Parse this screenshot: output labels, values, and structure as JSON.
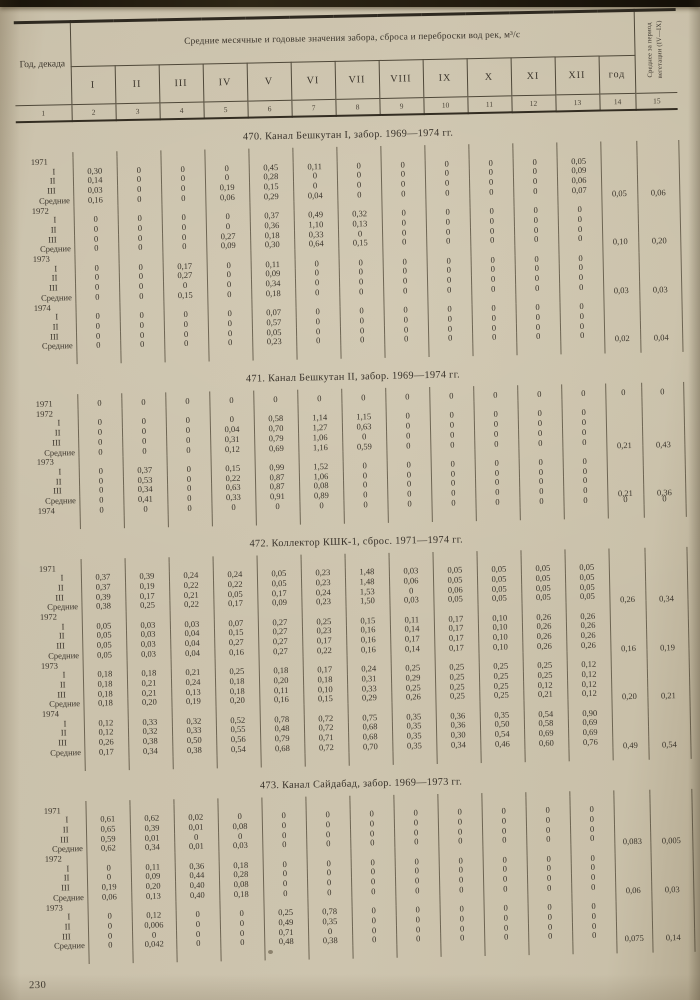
{
  "page": {
    "number": "230"
  },
  "header": {
    "col1": "Год, декада",
    "span_title": "Средние месячные и годовые значения забора, сброса и переброски вод рек, м³/с",
    "months": [
      "I",
      "II",
      "III",
      "IV",
      "V",
      "VI",
      "VII",
      "VIII",
      "IX",
      "X",
      "XI",
      "XII"
    ],
    "year_col": "год",
    "veg_col": "Среднее за период вегетации (IV—IX)",
    "col_numbers": [
      "1",
      "2",
      "3",
      "4",
      "5",
      "6",
      "7",
      "8",
      "9",
      "10",
      "11",
      "12",
      "13",
      "14",
      "15"
    ]
  },
  "sections": [
    {
      "title": "470. Канал Бешкутан I, забор. 1969—1974 гг.",
      "rows": [
        [
          "1971",
          "",
          "",
          "",
          "",
          "",
          "",
          "",
          "",
          "",
          "",
          "",
          "",
          "",
          ""
        ],
        [
          "I",
          "0,30",
          "0",
          "0",
          "0",
          "0,45",
          "0,11",
          "0",
          "0",
          "0",
          "0",
          "0",
          "0,05",
          "",
          ""
        ],
        [
          "II",
          "0,14",
          "0",
          "0",
          "0",
          "0,28",
          "0",
          "0",
          "0",
          "0",
          "0",
          "0",
          "0,09",
          "",
          ""
        ],
        [
          "III",
          "0,03",
          "0",
          "0",
          "0,19",
          "0,15",
          "0",
          "0",
          "0",
          "0",
          "0",
          "0",
          "0,06",
          "",
          ""
        ],
        [
          "Средние",
          "0,16",
          "0",
          "0",
          "0,06",
          "0,29",
          "0,04",
          "0",
          "0",
          "0",
          "0",
          "0",
          "0,07",
          "0,05",
          "0,06"
        ],
        [
          "1972",
          "",
          "",
          "",
          "",
          "",
          "",
          "",
          "",
          "",
          "",
          "",
          "",
          "",
          ""
        ],
        [
          "I",
          "0",
          "0",
          "0",
          "0",
          "0,37",
          "0,49",
          "0,32",
          "0",
          "0",
          "0",
          "0",
          "0",
          "",
          ""
        ],
        [
          "II",
          "0",
          "0",
          "0",
          "0",
          "0,36",
          "1,10",
          "0,13",
          "0",
          "0",
          "0",
          "0",
          "0",
          "",
          ""
        ],
        [
          "III",
          "0",
          "0",
          "0",
          "0,27",
          "0,18",
          "0,33",
          "0",
          "0",
          "0",
          "0",
          "0",
          "0",
          "",
          ""
        ],
        [
          "Средние",
          "0",
          "0",
          "0",
          "0,09",
          "0,30",
          "0,64",
          "0,15",
          "0",
          "0",
          "0",
          "0",
          "0",
          "0,10",
          "0,20"
        ],
        [
          "1973",
          "",
          "",
          "",
          "",
          "",
          "",
          "",
          "",
          "",
          "",
          "",
          "",
          "",
          ""
        ],
        [
          "I",
          "0",
          "0",
          "0,17",
          "0",
          "0,11",
          "0",
          "0",
          "0",
          "0",
          "0",
          "0",
          "0",
          "",
          ""
        ],
        [
          "II",
          "0",
          "0",
          "0,27",
          "0",
          "0,09",
          "0",
          "0",
          "0",
          "0",
          "0",
          "0",
          "0",
          "",
          ""
        ],
        [
          "III",
          "0",
          "0",
          "0",
          "0",
          "0,34",
          "0",
          "0",
          "0",
          "0",
          "0",
          "0",
          "0",
          "",
          ""
        ],
        [
          "Средние",
          "0",
          "0",
          "0,15",
          "0",
          "0,18",
          "0",
          "0",
          "0",
          "0",
          "0",
          "0",
          "0",
          "0,03",
          "0,03"
        ],
        [
          "1974",
          "",
          "",
          "",
          "",
          "",
          "",
          "",
          "",
          "",
          "",
          "",
          "",
          "",
          ""
        ],
        [
          "I",
          "0",
          "0",
          "0",
          "0",
          "0,07",
          "0",
          "0",
          "0",
          "0",
          "0",
          "0",
          "0",
          "",
          ""
        ],
        [
          "II",
          "0",
          "0",
          "0",
          "0",
          "0,57",
          "0",
          "0",
          "0",
          "0",
          "0",
          "0",
          "0",
          "",
          ""
        ],
        [
          "III",
          "0",
          "0",
          "0",
          "0",
          "0,05",
          "0",
          "0",
          "0",
          "0",
          "0",
          "0",
          "0",
          "",
          ""
        ],
        [
          "Средние",
          "0",
          "0",
          "0",
          "0",
          "0,23",
          "0",
          "0",
          "0",
          "0",
          "0",
          "0",
          "0",
          "0,02",
          "0,04"
        ]
      ]
    },
    {
      "title": "471. Канал Бешкутан II, забор. 1969—1974 гг.",
      "rows": [
        [
          "1971",
          "0",
          "0",
          "0",
          "0",
          "0",
          "0",
          "0",
          "0",
          "0",
          "0",
          "0",
          "0",
          "0",
          "0"
        ],
        [
          "1972",
          "",
          "",
          "",
          "",
          "",
          "",
          "",
          "",
          "",
          "",
          "",
          "",
          "",
          ""
        ],
        [
          "I",
          "0",
          "0",
          "0",
          "0",
          "0,58",
          "1,14",
          "1,15",
          "0",
          "0",
          "0",
          "0",
          "0",
          "",
          ""
        ],
        [
          "II",
          "0",
          "0",
          "0",
          "0,04",
          "0,70",
          "1,27",
          "0,63",
          "0",
          "0",
          "0",
          "0",
          "0",
          "",
          ""
        ],
        [
          "III",
          "0",
          "0",
          "0",
          "0,31",
          "0,79",
          "1,06",
          "0",
          "0",
          "0",
          "0",
          "0",
          "0",
          "",
          ""
        ],
        [
          "Средние",
          "0",
          "0",
          "0",
          "0,12",
          "0,69",
          "1,16",
          "0,59",
          "0",
          "0",
          "0",
          "0",
          "0",
          "0,21",
          "0,43"
        ],
        [
          "1973",
          "",
          "",
          "",
          "",
          "",
          "",
          "",
          "",
          "",
          "",
          "",
          "",
          "",
          ""
        ],
        [
          "I",
          "0",
          "0,37",
          "0",
          "0,15",
          "0,99",
          "1,52",
          "0",
          "0",
          "0",
          "0",
          "0",
          "0",
          "",
          ""
        ],
        [
          "II",
          "0",
          "0,53",
          "0",
          "0,22",
          "0,87",
          "1,06",
          "0",
          "0",
          "0",
          "0",
          "0",
          "0",
          "",
          ""
        ],
        [
          "III",
          "0",
          "0,34",
          "0",
          "0,63",
          "0,87",
          "0,08",
          "0",
          "0",
          "0",
          "0",
          "0",
          "0",
          "",
          ""
        ],
        [
          "Средние",
          "0",
          "0,41",
          "0",
          "0,33",
          "0,91",
          "0,89",
          "0",
          "0",
          "0",
          "0",
          "0",
          "0",
          "0,21",
          "0,36"
        ],
        [
          "1974",
          "0",
          "0",
          "0",
          "0",
          "0",
          "0",
          "0",
          "0",
          "0",
          "0",
          "0",
          "0",
          "0",
          "0"
        ]
      ]
    },
    {
      "title": "472. Коллектор КШК-1, сброс. 1971—1974 гг.",
      "rows": [
        [
          "1971",
          "",
          "",
          "",
          "",
          "",
          "",
          "",
          "",
          "",
          "",
          "",
          "",
          "",
          ""
        ],
        [
          "I",
          "0,37",
          "0,39",
          "0,24",
          "0,24",
          "0,05",
          "0,23",
          "1,48",
          "0,03",
          "0,05",
          "0,05",
          "0,05",
          "0,05",
          "",
          ""
        ],
        [
          "II",
          "0,37",
          "0,19",
          "0,22",
          "0,22",
          "0,05",
          "0,23",
          "1,48",
          "0,06",
          "0,05",
          "0,05",
          "0,05",
          "0,05",
          "",
          ""
        ],
        [
          "III",
          "0,39",
          "0,17",
          "0,21",
          "0,05",
          "0,17",
          "0,24",
          "1,53",
          "0",
          "0,06",
          "0,05",
          "0,05",
          "0,05",
          "",
          ""
        ],
        [
          "Средние",
          "0,38",
          "0,25",
          "0,22",
          "0,17",
          "0,09",
          "0,23",
          "1,50",
          "0,03",
          "0,05",
          "0,05",
          "0,05",
          "0,05",
          "0,26",
          "0,34"
        ],
        [
          "1972",
          "",
          "",
          "",
          "",
          "",
          "",
          "",
          "",
          "",
          "",
          "",
          "",
          "",
          ""
        ],
        [
          "I",
          "0,05",
          "0,03",
          "0,03",
          "0,07",
          "0,27",
          "0,25",
          "0,15",
          "0,11",
          "0,17",
          "0,10",
          "0,26",
          "0,26",
          "",
          ""
        ],
        [
          "II",
          "0,05",
          "0,03",
          "0,04",
          "0,15",
          "0,27",
          "0,23",
          "0,16",
          "0,14",
          "0,17",
          "0,10",
          "0,26",
          "0,26",
          "",
          ""
        ],
        [
          "III",
          "0,05",
          "0,03",
          "0,04",
          "0,27",
          "0,27",
          "0,17",
          "0,16",
          "0,17",
          "0,17",
          "0,10",
          "0,26",
          "0,26",
          "",
          ""
        ],
        [
          "Средние",
          "0,05",
          "0,03",
          "0,04",
          "0,16",
          "0,27",
          "0,22",
          "0,16",
          "0,14",
          "0,17",
          "0,10",
          "0,26",
          "0,26",
          "0,16",
          "0,19"
        ],
        [
          "1973",
          "",
          "",
          "",
          "",
          "",
          "",
          "",
          "",
          "",
          "",
          "",
          "",
          "",
          ""
        ],
        [
          "I",
          "0,18",
          "0,18",
          "0,21",
          "0,25",
          "0,18",
          "0,17",
          "0,24",
          "0,25",
          "0,25",
          "0,25",
          "0,25",
          "0,12",
          "",
          ""
        ],
        [
          "II",
          "0,18",
          "0,21",
          "0,24",
          "0,18",
          "0,20",
          "0,18",
          "0,31",
          "0,29",
          "0,25",
          "0,25",
          "0,25",
          "0,12",
          "",
          ""
        ],
        [
          "III",
          "0,18",
          "0,21",
          "0,13",
          "0,18",
          "0,11",
          "0,10",
          "0,33",
          "0,25",
          "0,25",
          "0,25",
          "0,12",
          "0,12",
          "",
          ""
        ],
        [
          "Средние",
          "0,18",
          "0,20",
          "0,19",
          "0,20",
          "0,16",
          "0,15",
          "0,29",
          "0,26",
          "0,25",
          "0,25",
          "0,21",
          "0,12",
          "0,20",
          "0,21"
        ],
        [
          "1974",
          "",
          "",
          "",
          "",
          "",
          "",
          "",
          "",
          "",
          "",
          "",
          "",
          "",
          ""
        ],
        [
          "I",
          "0,12",
          "0,33",
          "0,32",
          "0,52",
          "0,78",
          "0,72",
          "0,75",
          "0,35",
          "0,36",
          "0,35",
          "0,54",
          "0,90",
          "",
          ""
        ],
        [
          "II",
          "0,12",
          "0,32",
          "0,33",
          "0,55",
          "0,48",
          "0,72",
          "0,68",
          "0,35",
          "0,36",
          "0,50",
          "0,58",
          "0,69",
          "",
          ""
        ],
        [
          "III",
          "0,26",
          "0,38",
          "0,50",
          "0,56",
          "0,79",
          "0,71",
          "0,68",
          "0,35",
          "0,30",
          "0,54",
          "0,69",
          "0,69",
          "",
          ""
        ],
        [
          "Средние",
          "0,17",
          "0,34",
          "0,38",
          "0,54",
          "0,68",
          "0,72",
          "0,70",
          "0,35",
          "0,34",
          "0,46",
          "0,60",
          "0,76",
          "0,49",
          "0,54"
        ]
      ]
    },
    {
      "title": "473. Канал Сайдабад, забор. 1969—1973 гг.",
      "rows": [
        [
          "1971",
          "",
          "",
          "",
          "",
          "",
          "",
          "",
          "",
          "",
          "",
          "",
          "",
          "",
          ""
        ],
        [
          "I",
          "0,61",
          "0,62",
          "0,02",
          "0",
          "0",
          "0",
          "0",
          "0",
          "0",
          "0",
          "0",
          "0",
          "",
          ""
        ],
        [
          "II",
          "0,65",
          "0,39",
          "0,01",
          "0,08",
          "0",
          "0",
          "0",
          "0",
          "0",
          "0",
          "0",
          "0",
          "",
          ""
        ],
        [
          "III",
          "0,59",
          "0,01",
          "0",
          "0",
          "0",
          "0",
          "0",
          "0",
          "0",
          "0",
          "0",
          "0",
          "",
          ""
        ],
        [
          "Средние",
          "0,62",
          "0,34",
          "0,01",
          "0,03",
          "0",
          "0",
          "0",
          "0",
          "0",
          "0",
          "0",
          "0",
          "0,083",
          "0,005"
        ],
        [
          "1972",
          "",
          "",
          "",
          "",
          "",
          "",
          "",
          "",
          "",
          "",
          "",
          "",
          "",
          ""
        ],
        [
          "I",
          "0",
          "0,11",
          "0,36",
          "0,18",
          "0",
          "0",
          "0",
          "0",
          "0",
          "0",
          "0",
          "0",
          "",
          ""
        ],
        [
          "II",
          "0",
          "0,09",
          "0,44",
          "0,28",
          "0",
          "0",
          "0",
          "0",
          "0",
          "0",
          "0",
          "0",
          "",
          ""
        ],
        [
          "III",
          "0,19",
          "0,20",
          "0,40",
          "0,08",
          "0",
          "0",
          "0",
          "0",
          "0",
          "0",
          "0",
          "0",
          "",
          ""
        ],
        [
          "Средние",
          "0,06",
          "0,13",
          "0,40",
          "0,18",
          "0",
          "0",
          "0",
          "0",
          "0",
          "0",
          "0",
          "0",
          "0,06",
          "0,03"
        ],
        [
          "1973",
          "",
          "",
          "",
          "",
          "",
          "",
          "",
          "",
          "",
          "",
          "",
          "",
          "",
          ""
        ],
        [
          "I",
          "0",
          "0,12",
          "0",
          "0",
          "0,25",
          "0,78",
          "0",
          "0",
          "0",
          "0",
          "0",
          "0",
          "",
          ""
        ],
        [
          "II",
          "0",
          "0,006",
          "0",
          "0",
          "0,49",
          "0,35",
          "0",
          "0",
          "0",
          "0",
          "0",
          "0",
          "",
          ""
        ],
        [
          "III",
          "0",
          "0",
          "0",
          "0",
          "0,71",
          "0",
          "0",
          "0",
          "0",
          "0",
          "0",
          "0",
          "",
          ""
        ],
        [
          "Средние",
          "0",
          "0,042",
          "0",
          "0",
          "0,48",
          "0,38",
          "0",
          "0",
          "0",
          "0",
          "0",
          "0",
          "0,075",
          "0,14"
        ]
      ]
    }
  ]
}
